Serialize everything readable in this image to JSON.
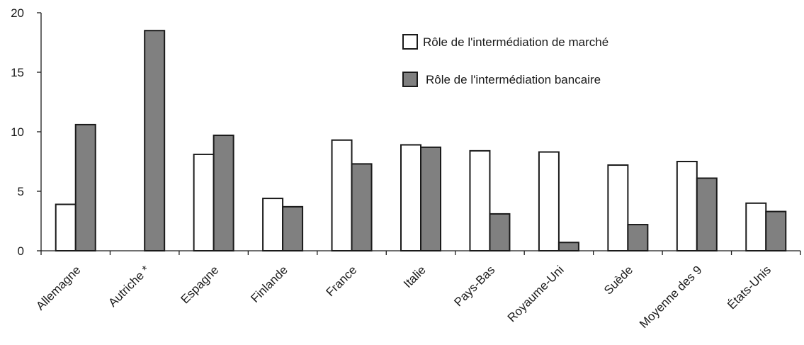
{
  "chart_data": {
    "type": "bar",
    "title": "",
    "xlabel": "",
    "ylabel": "",
    "ylim": [
      0,
      20
    ],
    "yticks": [
      0,
      5,
      10,
      15,
      20
    ],
    "grid": false,
    "legend_position": "top-right",
    "categories": [
      "Allemagne",
      "Autriche *",
      "Espagne",
      "Finlande",
      "France",
      "Italie",
      "Pays-Bas",
      "Royaume-Uni",
      "Suède",
      "Moyenne des 9",
      "États-Unis"
    ],
    "series": [
      {
        "name": "Rôle de l'intermédiation de marché",
        "color": "#ffffff",
        "values": [
          3.9,
          null,
          8.1,
          4.4,
          9.3,
          8.9,
          8.4,
          8.3,
          7.2,
          7.5,
          4.0
        ]
      },
      {
        "name": "Rôle de l'intermédiation bancaire",
        "color": "#808080",
        "values": [
          10.6,
          18.5,
          9.7,
          3.7,
          7.3,
          8.7,
          3.1,
          0.7,
          2.2,
          6.1,
          3.3
        ]
      }
    ]
  }
}
